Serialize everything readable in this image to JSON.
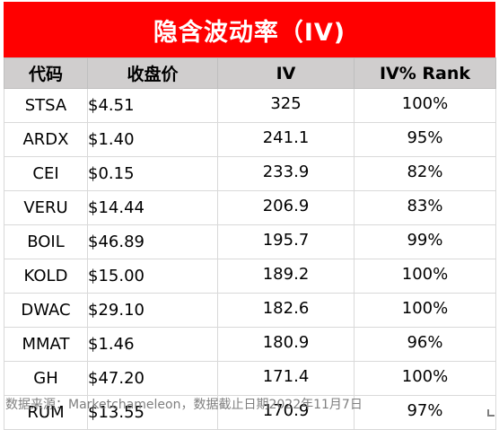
{
  "title": "隐含波动率（IV)",
  "table": {
    "headers": [
      "代码",
      "收盘价",
      "IV",
      "IV% Rank"
    ],
    "rows": [
      {
        "symbol": "STSA",
        "price": "$4.51",
        "iv": "325",
        "rank": "100%"
      },
      {
        "symbol": "ARDX",
        "price": "$1.40",
        "iv": "241.1",
        "rank": "95%"
      },
      {
        "symbol": "CEI",
        "price": "$0.15",
        "iv": "233.9",
        "rank": "82%"
      },
      {
        "symbol": "VERU",
        "price": "$14.44",
        "iv": "206.9",
        "rank": "83%"
      },
      {
        "symbol": "BOIL",
        "price": "$46.89",
        "iv": "195.7",
        "rank": "99%"
      },
      {
        "symbol": "KOLD",
        "price": "$15.00",
        "iv": "189.2",
        "rank": "100%"
      },
      {
        "symbol": "DWAC",
        "price": "$29.10",
        "iv": "182.6",
        "rank": "100%"
      },
      {
        "symbol": "MMAT",
        "price": "$1.46",
        "iv": "180.9",
        "rank": "96%"
      },
      {
        "symbol": "GH",
        "price": "$47.20",
        "iv": "171.4",
        "rank": "100%"
      },
      {
        "symbol": "RUM",
        "price": "$13.55",
        "iv": "170.9",
        "rank": "97%"
      }
    ]
  },
  "footer": "数据来源：Marketchameleon，数据截止日期2022年11月7日",
  "colors": {
    "title_background": "#ff0000",
    "title_text": "#ffffff",
    "header_background": "#d0cece",
    "footer_text": "#7f7f7f"
  }
}
